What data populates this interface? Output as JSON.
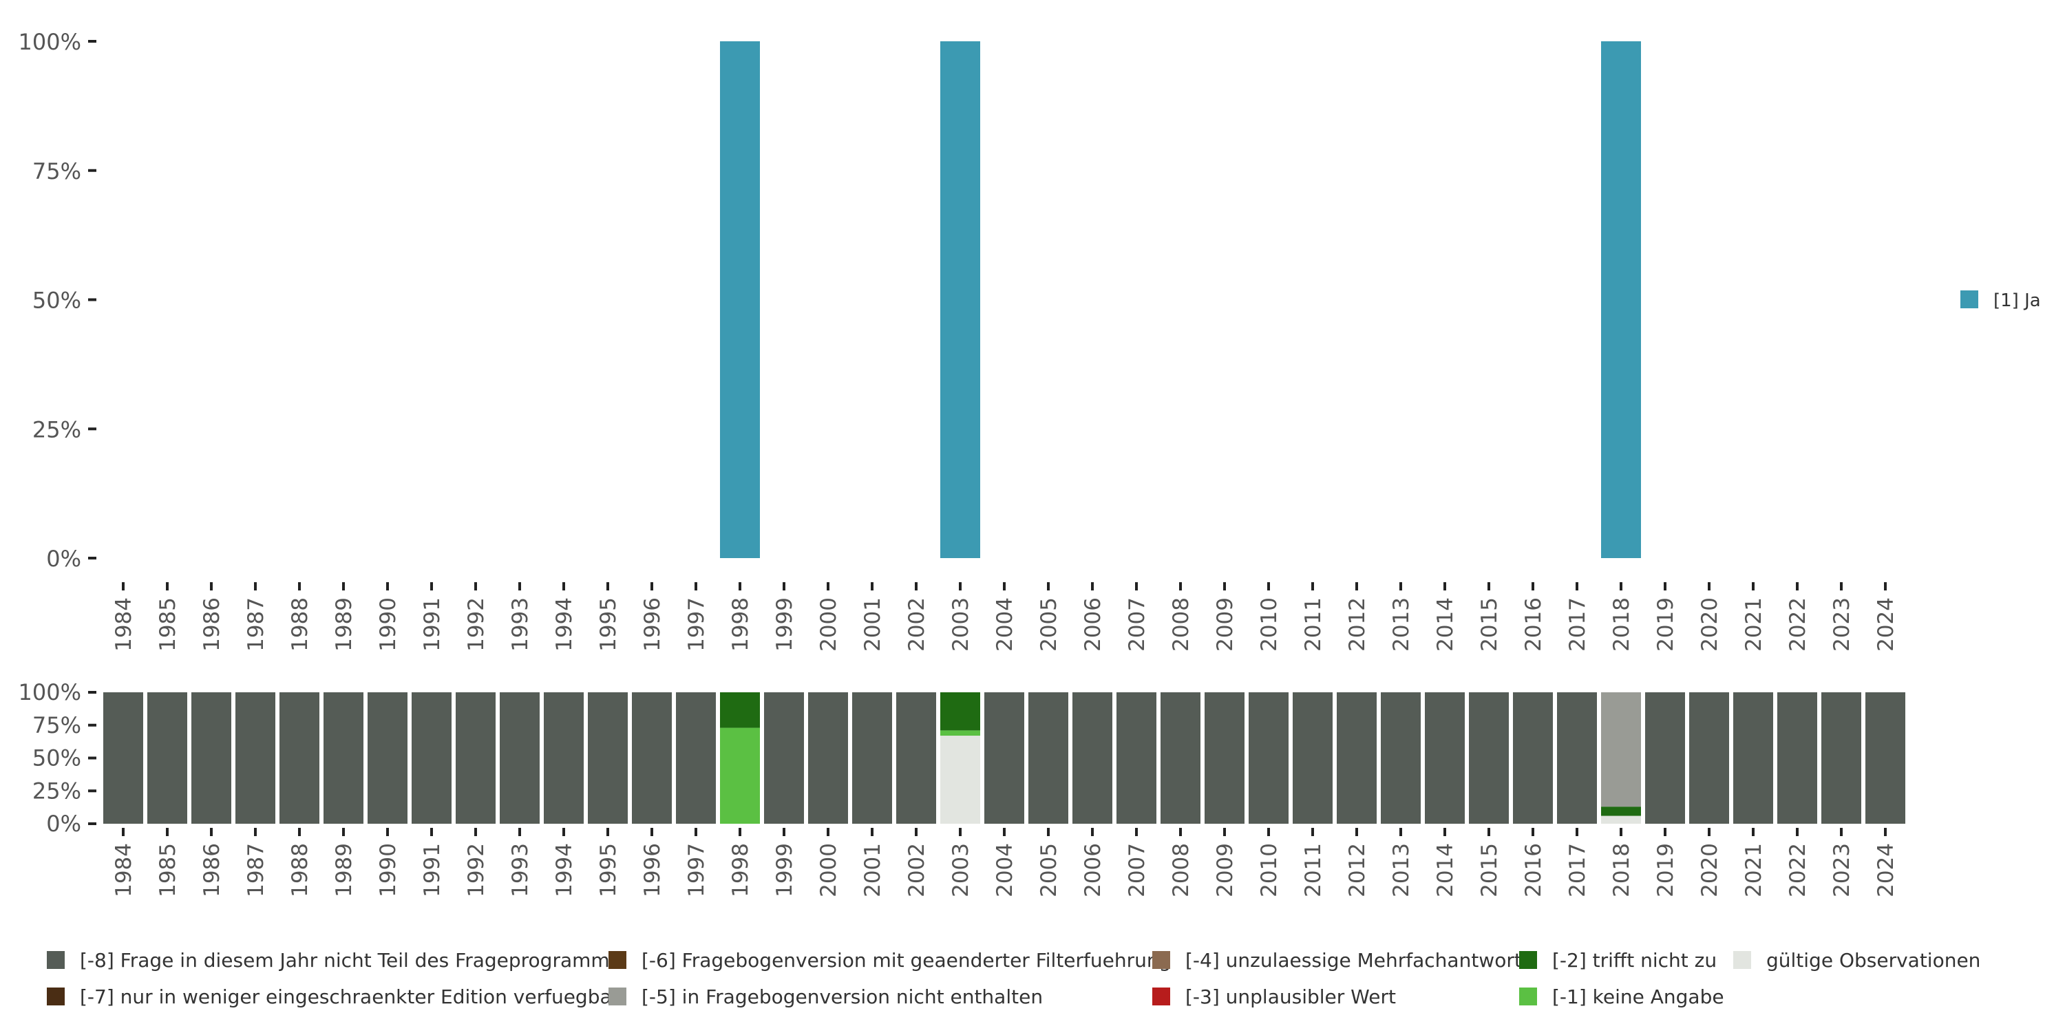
{
  "colors": {
    "ja": "#3c9ab2",
    "m8": "#555c56",
    "m7": "#4a2d14",
    "m6": "#5b3a17",
    "m5": "#999b95",
    "m4": "#8b6a50",
    "m3": "#b71c1c",
    "m2": "#1f6b12",
    "m1": "#5bc043",
    "valid": "#e2e5e0",
    "text": "#555555"
  },
  "chart_data": [
    {
      "type": "bar",
      "title": "",
      "xlabel": "",
      "ylabel": "",
      "ylim": [
        0,
        100
      ],
      "y_ticks": [
        "0%",
        "25%",
        "50%",
        "75%",
        "100%"
      ],
      "categories": [
        "1984",
        "1985",
        "1986",
        "1987",
        "1988",
        "1989",
        "1990",
        "1991",
        "1992",
        "1993",
        "1994",
        "1995",
        "1996",
        "1997",
        "1998",
        "1999",
        "2000",
        "2001",
        "2002",
        "2003",
        "2004",
        "2005",
        "2006",
        "2007",
        "2008",
        "2009",
        "2010",
        "2011",
        "2012",
        "2013",
        "2014",
        "2015",
        "2016",
        "2017",
        "2018",
        "2019",
        "2020",
        "2021",
        "2022",
        "2023",
        "2024"
      ],
      "series": [
        {
          "name": "[1] Ja",
          "color_key": "ja",
          "values": {
            "1998": 100,
            "2003": 100,
            "2018": 100
          }
        }
      ],
      "legend": {
        "position": "right",
        "entries": [
          "[1] Ja"
        ]
      }
    },
    {
      "type": "bar",
      "stacked": true,
      "ylim": [
        0,
        100
      ],
      "y_ticks": [
        "0%",
        "25%",
        "50%",
        "75%",
        "100%"
      ],
      "categories": [
        "1984",
        "1985",
        "1986",
        "1987",
        "1988",
        "1989",
        "1990",
        "1991",
        "1992",
        "1993",
        "1994",
        "1995",
        "1996",
        "1997",
        "1998",
        "1999",
        "2000",
        "2001",
        "2002",
        "2003",
        "2004",
        "2005",
        "2006",
        "2007",
        "2008",
        "2009",
        "2010",
        "2011",
        "2012",
        "2013",
        "2014",
        "2015",
        "2016",
        "2017",
        "2018",
        "2019",
        "2020",
        "2021",
        "2022",
        "2023",
        "2024"
      ],
      "default_stack": [
        {
          "key": "m8",
          "value": 100
        }
      ],
      "stacks": {
        "1998": [
          {
            "key": "m1",
            "value": 73
          },
          {
            "key": "m2",
            "value": 27
          }
        ],
        "2003": [
          {
            "key": "valid",
            "value": 67
          },
          {
            "key": "m1",
            "value": 4
          },
          {
            "key": "m2",
            "value": 29
          }
        ],
        "2018": [
          {
            "key": "valid",
            "value": 6
          },
          {
            "key": "m2",
            "value": 7
          },
          {
            "key": "m5",
            "value": 87
          }
        ]
      },
      "legend": {
        "position": "bottom",
        "entries": [
          {
            "key": "m8",
            "label": "[-8] Frage in diesem Jahr nicht Teil des Frageprogramms"
          },
          {
            "key": "m7",
            "label": "[-7] nur in weniger eingeschraenkter Edition verfuegbar"
          },
          {
            "key": "m6",
            "label": "[-6] Fragebogenversion mit geaenderter Filterfuehrung"
          },
          {
            "key": "m5",
            "label": "[-5] in Fragebogenversion nicht enthalten"
          },
          {
            "key": "m4",
            "label": "[-4] unzulaessige Mehrfachantwort"
          },
          {
            "key": "m3",
            "label": "[-3] unplausibler Wert"
          },
          {
            "key": "m2",
            "label": "[-2] trifft nicht zu"
          },
          {
            "key": "m1",
            "label": "[-1] keine Angabe"
          },
          {
            "key": "valid",
            "label": "gültige Observationen"
          }
        ]
      }
    }
  ]
}
